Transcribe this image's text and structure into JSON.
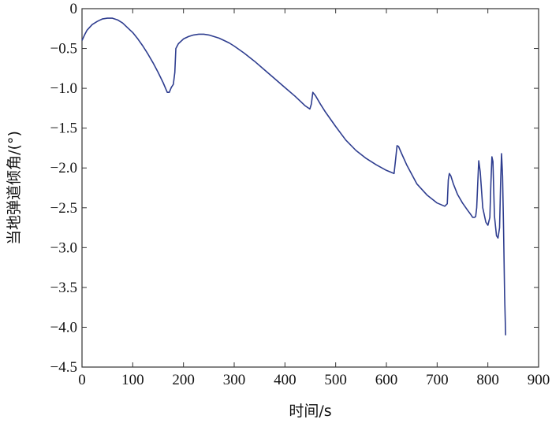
{
  "chart_data": {
    "type": "line",
    "title": "",
    "xlabel": "时间/s",
    "ylabel": "当地弹道倾角/(°)",
    "xlim": [
      0,
      900
    ],
    "ylim": [
      -4.5,
      0
    ],
    "xticks": [
      0,
      100,
      200,
      300,
      400,
      500,
      600,
      700,
      800,
      900
    ],
    "xtick_labels": [
      "0",
      "100",
      "200",
      "300",
      "400",
      "500",
      "600",
      "700",
      "800",
      "900"
    ],
    "yticks": [
      0,
      -0.5,
      -1.0,
      -1.5,
      -2.0,
      -2.5,
      -3.0,
      -3.5,
      -4.0,
      -4.5
    ],
    "ytick_labels": [
      "0",
      "−0.5",
      "−1.0",
      "−1.5",
      "−2.0",
      "−2.5",
      "−3.0",
      "−3.5",
      "−4.0",
      "−4.5"
    ],
    "grid": false,
    "line_color": "#2e3d8f",
    "series": [
      {
        "x": [
          0,
          5,
          10,
          20,
          30,
          40,
          50,
          60,
          70,
          80,
          90,
          100,
          110,
          120,
          130,
          140,
          150,
          160,
          168,
          172,
          176,
          180,
          183,
          185,
          190,
          200,
          210,
          220,
          230,
          240,
          250,
          260,
          270,
          280,
          290,
          300,
          320,
          340,
          360,
          380,
          400,
          420,
          440,
          449,
          452,
          455,
          460,
          470,
          480,
          500,
          520,
          540,
          560,
          580,
          600,
          615,
          618,
          621,
          624,
          630,
          640,
          660,
          680,
          700,
          715,
          720,
          722,
          724,
          727,
          732,
          740,
          750,
          760,
          767,
          770,
          772,
          774,
          776,
          778,
          780,
          782,
          785,
          790,
          796,
          800,
          804,
          806,
          808,
          810,
          813,
          817,
          820,
          823,
          825,
          827,
          829,
          831,
          833,
          835
        ],
        "y": [
          -0.4,
          -0.33,
          -0.27,
          -0.2,
          -0.16,
          -0.13,
          -0.12,
          -0.12,
          -0.14,
          -0.18,
          -0.24,
          -0.3,
          -0.38,
          -0.47,
          -0.57,
          -0.68,
          -0.8,
          -0.93,
          -1.05,
          -1.05,
          -0.99,
          -0.95,
          -0.8,
          -0.5,
          -0.44,
          -0.38,
          -0.35,
          -0.33,
          -0.32,
          -0.32,
          -0.33,
          -0.35,
          -0.37,
          -0.4,
          -0.43,
          -0.47,
          -0.56,
          -0.66,
          -0.77,
          -0.88,
          -0.99,
          -1.1,
          -1.22,
          -1.26,
          -1.2,
          -1.05,
          -1.09,
          -1.2,
          -1.3,
          -1.48,
          -1.65,
          -1.78,
          -1.88,
          -1.96,
          -2.03,
          -2.07,
          -1.9,
          -1.72,
          -1.73,
          -1.82,
          -1.96,
          -2.2,
          -2.34,
          -2.44,
          -2.48,
          -2.45,
          -2.15,
          -2.07,
          -2.1,
          -2.2,
          -2.33,
          -2.44,
          -2.53,
          -2.59,
          -2.62,
          -2.62,
          -2.62,
          -2.61,
          -2.5,
          -2.2,
          -1.91,
          -2.05,
          -2.5,
          -2.68,
          -2.72,
          -2.62,
          -2.2,
          -1.86,
          -1.92,
          -2.6,
          -2.85,
          -2.88,
          -2.75,
          -2.2,
          -1.82,
          -2.1,
          -2.78,
          -3.6,
          -4.1
        ]
      }
    ]
  }
}
